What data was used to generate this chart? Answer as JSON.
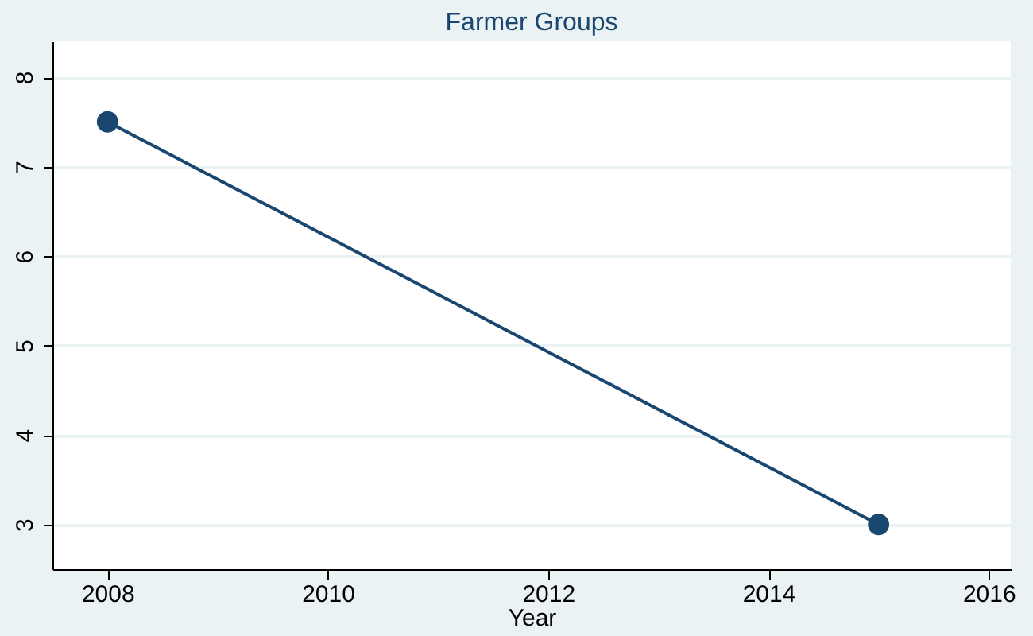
{
  "chart_data": {
    "type": "line",
    "title": "Farmer Groups",
    "xlabel": "Year",
    "x": [
      2008,
      2015
    ],
    "series": [
      {
        "color": "#1a476f",
        "values": [
          7.5,
          3
        ]
      }
    ],
    "xlim": [
      2007.5,
      2016.2
    ],
    "xticks": [
      2008,
      2010,
      2012,
      2014,
      2016
    ],
    "ylim": [
      2.5,
      8.4
    ],
    "yticks": [
      3,
      4,
      5,
      6,
      7,
      8
    ],
    "grid": "y",
    "marker": "circle",
    "line_style": "solid"
  }
}
